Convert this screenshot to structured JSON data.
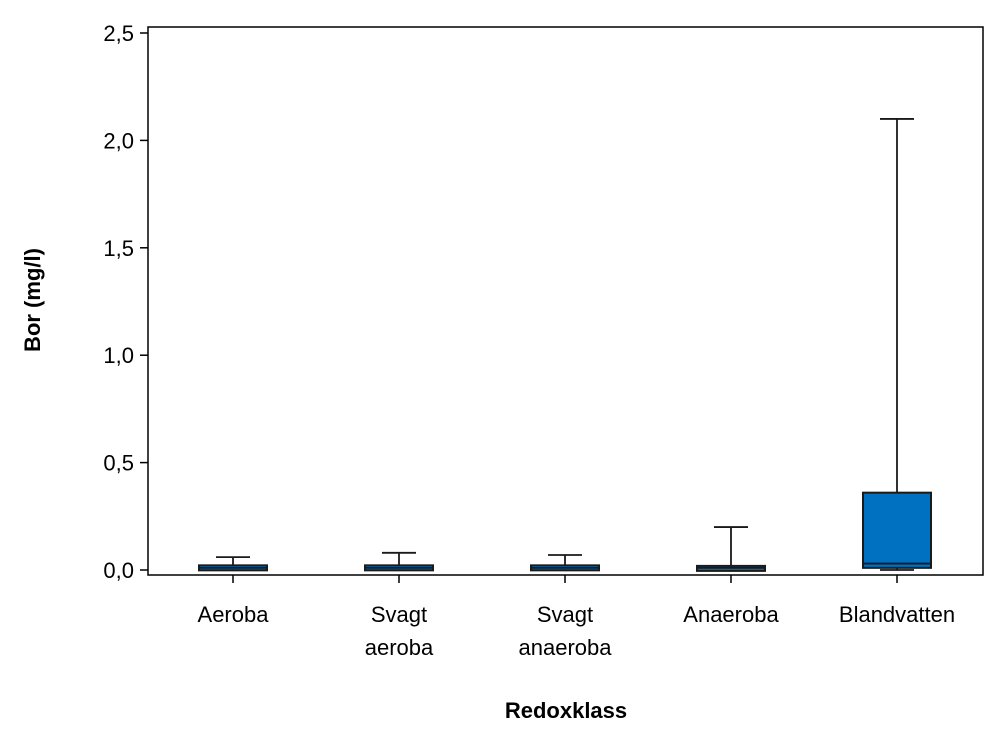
{
  "chart_data": {
    "type": "box",
    "title": "",
    "xlabel": "Redoxklass",
    "ylabel": "Bor (mg/l)",
    "ylim": [
      0,
      2.5
    ],
    "yticks": [
      0,
      0.5,
      1.0,
      1.5,
      2.0,
      2.5
    ],
    "ytick_labels": [
      "0,0",
      "0,5",
      "1,0",
      "1,5",
      "2,0",
      "2,5"
    ],
    "categories": [
      [
        "Aeroba"
      ],
      [
        "Svagt",
        "aeroba"
      ],
      [
        "Svagt",
        "anaeroba"
      ],
      [
        "Anaeroba"
      ],
      [
        "Blandvatten"
      ]
    ],
    "boxes": [
      {
        "min": 0.0,
        "q1": 0.0,
        "median": 0.01,
        "q3": 0.02,
        "max": 0.06
      },
      {
        "min": 0.0,
        "q1": 0.0,
        "median": 0.01,
        "q3": 0.02,
        "max": 0.08
      },
      {
        "min": 0.0,
        "q1": 0.0,
        "median": 0.01,
        "q3": 0.02,
        "max": 0.07
      },
      {
        "min": 0.0,
        "q1": 0.0,
        "median": 0.01,
        "q3": 0.015,
        "max": 0.2
      },
      {
        "min": 0.0,
        "q1": 0.01,
        "median": 0.03,
        "q3": 0.36,
        "max": 2.1
      }
    ],
    "grid": false,
    "legend": "none",
    "colors": {
      "box_fill": "#0070C0",
      "box_stroke": "#1a1a1a",
      "axis": "#000000"
    }
  }
}
